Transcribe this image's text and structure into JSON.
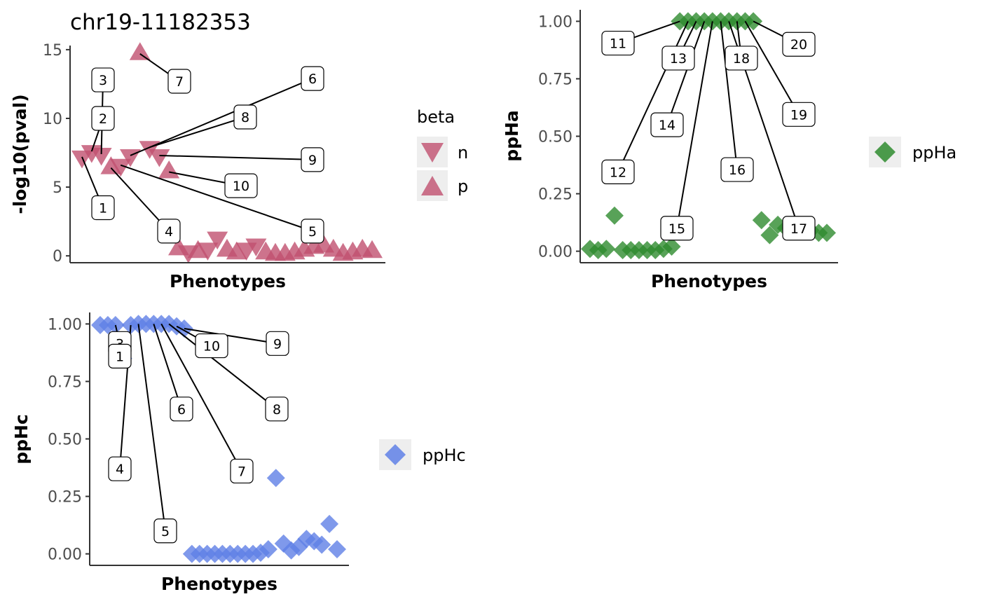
{
  "colors": {
    "pval": "#c0506f",
    "ppHa": "#2e8b2e",
    "ppHc": "#5f80e6",
    "axis": "#333333",
    "legend_key_bg": "#eeeeee"
  },
  "chart_data": [
    {
      "id": "pval",
      "type": "scatter",
      "title": "chr19-11182353",
      "xlabel": "Phenotypes",
      "ylabel": "-log10(pval)",
      "ylim": [
        -0.5,
        15.3
      ],
      "yticks": [
        0,
        5,
        10,
        15
      ],
      "ytick_labels": [
        "0",
        "5",
        "10",
        "15"
      ],
      "grid": false,
      "legend": {
        "title": "beta",
        "position": "right",
        "entries": [
          {
            "key": "n",
            "label": "n",
            "marker": "triangle-down"
          },
          {
            "key": "p",
            "label": "p",
            "marker": "triangle-up"
          }
        ]
      },
      "points": [
        {
          "x": 1,
          "y": 7.2,
          "beta": "n",
          "label": "1",
          "ly": 3.5
        },
        {
          "x": 2,
          "y": 7.6,
          "beta": "n",
          "label": "2",
          "ly": 10.0
        },
        {
          "x": 3,
          "y": 7.4,
          "beta": "n",
          "label": "3",
          "ly": 12.8
        },
        {
          "x": 4,
          "y": 6.4,
          "beta": "p",
          "label": "4",
          "ly": 1.8
        },
        {
          "x": 5,
          "y": 6.6,
          "beta": "n",
          "label": "5",
          "ly": 1.8
        },
        {
          "x": 6,
          "y": 7.3,
          "beta": "n",
          "label": "6",
          "ly": 12.9
        },
        {
          "x": 7,
          "y": 14.7,
          "beta": "p",
          "label": "7",
          "ly": 12.7
        },
        {
          "x": 8,
          "y": 7.9,
          "beta": "n",
          "label": "8",
          "ly": 10.1
        },
        {
          "x": 9,
          "y": 7.3,
          "beta": "n",
          "label": "9",
          "ly": 7.0
        },
        {
          "x": 10,
          "y": 6.1,
          "beta": "p",
          "label": "10",
          "ly": 5.1
        },
        {
          "x": 11,
          "y": 0.5,
          "beta": "p"
        },
        {
          "x": 12,
          "y": 0.3,
          "beta": "n"
        },
        {
          "x": 13,
          "y": 0.3,
          "beta": "p"
        },
        {
          "x": 14,
          "y": 0.5,
          "beta": "n"
        },
        {
          "x": 15,
          "y": 1.3,
          "beta": "n"
        },
        {
          "x": 16,
          "y": 0.4,
          "beta": "p"
        },
        {
          "x": 17,
          "y": 0.2,
          "beta": "p"
        },
        {
          "x": 18,
          "y": 0.5,
          "beta": "n"
        },
        {
          "x": 19,
          "y": 0.8,
          "beta": "n"
        },
        {
          "x": 20,
          "y": 0.2,
          "beta": "p"
        },
        {
          "x": 21,
          "y": 0.1,
          "beta": "p"
        },
        {
          "x": 22,
          "y": 0.1,
          "beta": "p"
        },
        {
          "x": 23,
          "y": 0.2,
          "beta": "p"
        },
        {
          "x": 24,
          "y": 0.4,
          "beta": "p"
        },
        {
          "x": 25,
          "y": 0.6,
          "beta": "p"
        },
        {
          "x": 26,
          "y": 0.7,
          "beta": "p"
        },
        {
          "x": 27,
          "y": 0.4,
          "beta": "p"
        },
        {
          "x": 28,
          "y": 0.1,
          "beta": "p"
        },
        {
          "x": 29,
          "y": 0.2,
          "beta": "p"
        },
        {
          "x": 30,
          "y": 0.4,
          "beta": "p"
        },
        {
          "x": 31,
          "y": 0.3,
          "beta": "p"
        }
      ]
    },
    {
      "id": "ppHa",
      "type": "scatter",
      "title": "",
      "xlabel": "Phenotypes",
      "ylabel": "ppHa",
      "ylim": [
        -0.05,
        1.05
      ],
      "yticks": [
        0,
        0.25,
        0.5,
        0.75,
        1.0
      ],
      "ytick_labels": [
        "0.00",
        "0.25",
        "0.50",
        "0.75",
        "1.00"
      ],
      "grid": false,
      "legend": {
        "title": "",
        "position": "right",
        "entries": [
          {
            "key": "ppHa",
            "label": "ppHa",
            "marker": "diamond"
          }
        ]
      },
      "points": [
        {
          "x": 1,
          "y": 0.01
        },
        {
          "x": 2,
          "y": 0.005
        },
        {
          "x": 3,
          "y": 0.01
        },
        {
          "x": 4,
          "y": 0.155
        },
        {
          "x": 5,
          "y": 0.005
        },
        {
          "x": 6,
          "y": 0.005
        },
        {
          "x": 7,
          "y": 0.005
        },
        {
          "x": 8,
          "y": 0.005
        },
        {
          "x": 9,
          "y": 0.005
        },
        {
          "x": 10,
          "y": 0.01
        },
        {
          "x": 11,
          "y": 0.02
        },
        {
          "x": 12,
          "y": 1.0,
          "label": "11",
          "ly": 0.905
        },
        {
          "x": 13,
          "y": 1.0,
          "label": "12",
          "ly": 0.345
        },
        {
          "x": 14,
          "y": 1.0,
          "label": "13",
          "ly": 0.84
        },
        {
          "x": 15,
          "y": 1.0,
          "label": "14",
          "ly": 0.55
        },
        {
          "x": 16,
          "y": 1.0,
          "label": "15",
          "ly": 0.1
        },
        {
          "x": 17,
          "y": 1.0,
          "label": "16",
          "ly": 0.355
        },
        {
          "x": 18,
          "y": 1.0,
          "label": "17",
          "ly": 0.1
        },
        {
          "x": 19,
          "y": 1.0,
          "label": "18",
          "ly": 0.84
        },
        {
          "x": 20,
          "y": 1.0,
          "label": "19",
          "ly": 0.595
        },
        {
          "x": 21,
          "y": 1.0,
          "label": "20",
          "ly": 0.9
        },
        {
          "x": 22,
          "y": 0.135
        },
        {
          "x": 23,
          "y": 0.07
        },
        {
          "x": 24,
          "y": 0.115
        },
        {
          "x": 25,
          "y": 0.1
        },
        {
          "x": 26,
          "y": 0.11
        },
        {
          "x": 27,
          "y": 0.105
        },
        {
          "x": 28,
          "y": 0.09
        },
        {
          "x": 29,
          "y": 0.08
        },
        {
          "x": 30,
          "y": 0.08
        }
      ]
    },
    {
      "id": "ppHc",
      "type": "scatter",
      "title": "",
      "xlabel": "Phenotypes",
      "ylabel": "ppHc",
      "ylim": [
        -0.05,
        1.05
      ],
      "yticks": [
        0,
        0.25,
        0.5,
        0.75,
        1.0
      ],
      "ytick_labels": [
        "0.00",
        "0.25",
        "0.50",
        "0.75",
        "1.00"
      ],
      "grid": false,
      "legend": {
        "title": "",
        "position": "right",
        "entries": [
          {
            "key": "ppHc",
            "label": "ppHc",
            "marker": "diamond"
          }
        ]
      },
      "points": [
        {
          "x": 1,
          "y": 0.995
        },
        {
          "x": 2,
          "y": 0.995
        },
        {
          "x": 3,
          "y": 0.995,
          "label": "3",
          "ly": 0.915
        },
        {
          "x": 4,
          "y": 0.85,
          "label": "1",
          "ly": 0.86
        },
        {
          "x": 5,
          "y": 0.995,
          "label": "4",
          "ly": 0.37
        },
        {
          "x": 6,
          "y": 1.0,
          "label": "5",
          "ly": 0.1
        },
        {
          "x": 7,
          "y": 1.0
        },
        {
          "x": 8,
          "y": 1.0,
          "label": "6",
          "ly": 0.63
        },
        {
          "x": 9,
          "y": 1.0,
          "label": "7",
          "ly": 0.36
        },
        {
          "x": 10,
          "y": 1.0,
          "label": "8",
          "ly": 0.63
        },
        {
          "x": 11,
          "y": 0.99,
          "label": "10",
          "ly": 0.905
        },
        {
          "x": 12,
          "y": 0.98,
          "label": "9",
          "ly": 0.915
        },
        {
          "x": 13,
          "y": 0.0
        },
        {
          "x": 14,
          "y": 0.0
        },
        {
          "x": 15,
          "y": 0.0
        },
        {
          "x": 16,
          "y": 0.0
        },
        {
          "x": 17,
          "y": 0.0
        },
        {
          "x": 18,
          "y": 0.0
        },
        {
          "x": 19,
          "y": 0.0
        },
        {
          "x": 20,
          "y": 0.0
        },
        {
          "x": 21,
          "y": 0.0
        },
        {
          "x": 22,
          "y": 0.005
        },
        {
          "x": 23,
          "y": 0.02
        },
        {
          "x": 24,
          "y": 0.33
        },
        {
          "x": 25,
          "y": 0.045
        },
        {
          "x": 26,
          "y": 0.015
        },
        {
          "x": 27,
          "y": 0.03
        },
        {
          "x": 28,
          "y": 0.065
        },
        {
          "x": 29,
          "y": 0.055
        },
        {
          "x": 30,
          "y": 0.04
        },
        {
          "x": 31,
          "y": 0.13
        },
        {
          "x": 32,
          "y": 0.02
        }
      ]
    }
  ]
}
